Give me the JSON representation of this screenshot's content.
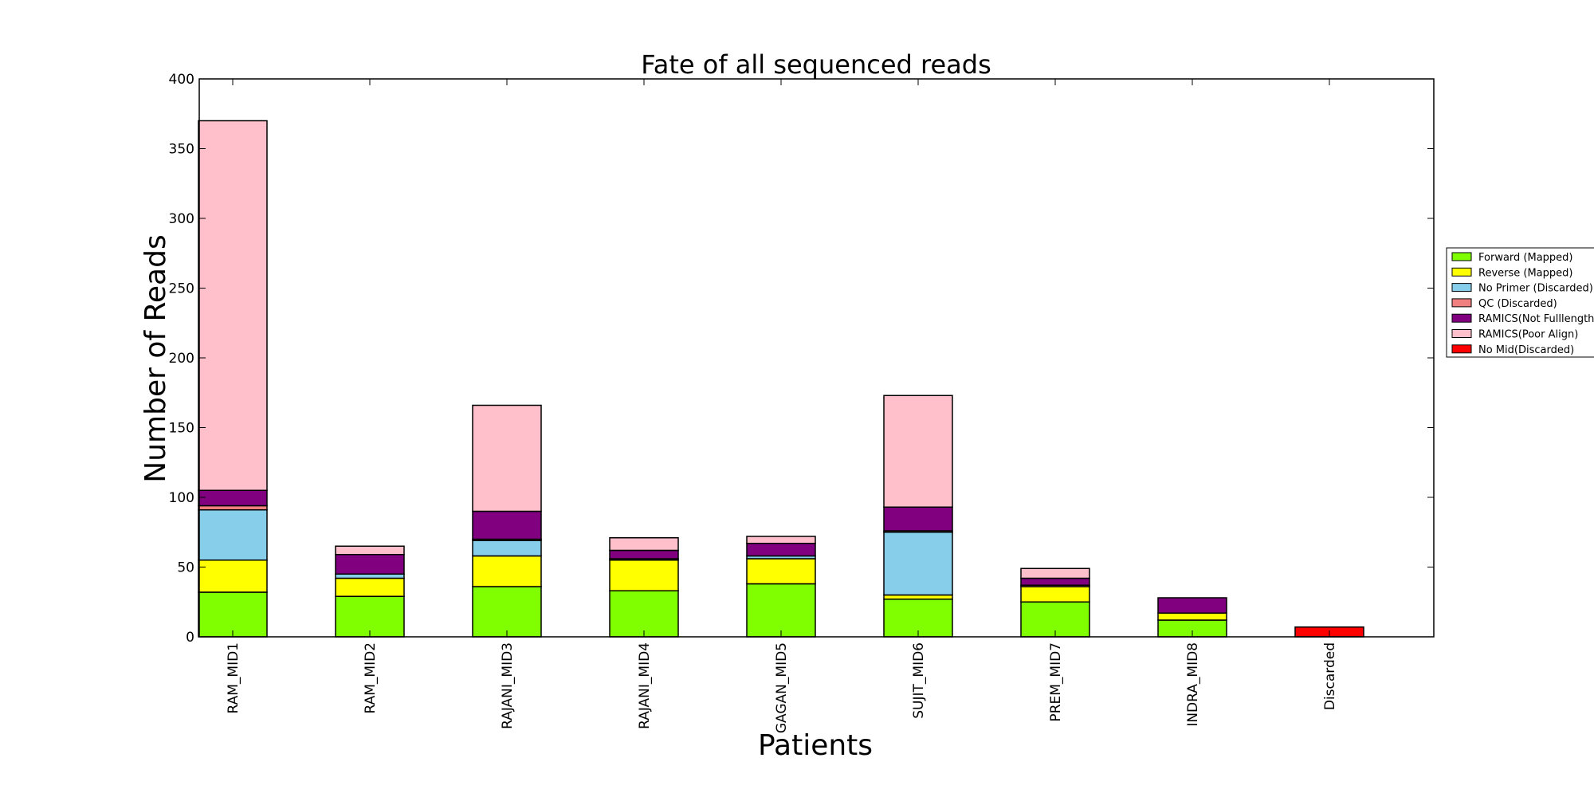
{
  "chart_data": {
    "type": "bar",
    "stacked": true,
    "title": "Fate of all sequenced reads",
    "xlabel": "Patients",
    "ylabel": "Number of Reads",
    "ylim": [
      0,
      400
    ],
    "yticks": [
      0,
      50,
      100,
      150,
      200,
      250,
      300,
      350,
      400
    ],
    "categories": [
      "RAM_MID1",
      "RAM_MID2",
      "RAJANI_MID3",
      "RAJANI_MID4",
      "GAGAN_MID5",
      "SUJIT_MID6",
      "PREM_MID7",
      "INDRA_MID8",
      "Discarded"
    ],
    "grid": false,
    "legend_position": "right, outside plot",
    "series": [
      {
        "name": "Forward (Mapped)",
        "color": "#7fff00",
        "values": [
          32,
          29,
          36,
          33,
          38,
          27,
          25,
          12,
          0
        ]
      },
      {
        "name": "Reverse (Mapped)",
        "color": "#ffff00",
        "values": [
          23,
          13,
          22,
          22,
          18,
          3,
          11,
          5,
          0
        ]
      },
      {
        "name": "No Primer (Discarded)",
        "color": "#87ceeb",
        "values": [
          36,
          3,
          11,
          0,
          2,
          45,
          0,
          0,
          0
        ]
      },
      {
        "name": "QC (Discarded)",
        "color": "#f08080",
        "values": [
          3,
          0,
          1,
          1,
          0,
          1,
          1,
          0,
          0
        ]
      },
      {
        "name": "RAMICS(Not Fulllength)",
        "color": "#800080",
        "values": [
          11,
          14,
          20,
          6,
          9,
          17,
          5,
          11,
          0
        ]
      },
      {
        "name": "RAMICS(Poor Align)",
        "color": "#ffc0cb",
        "values": [
          265,
          6,
          76,
          9,
          5,
          80,
          7,
          0,
          0
        ]
      },
      {
        "name": "No Mid(Discarded)",
        "color": "#ff0000",
        "values": [
          0,
          0,
          0,
          0,
          0,
          0,
          0,
          0,
          7
        ]
      }
    ]
  }
}
